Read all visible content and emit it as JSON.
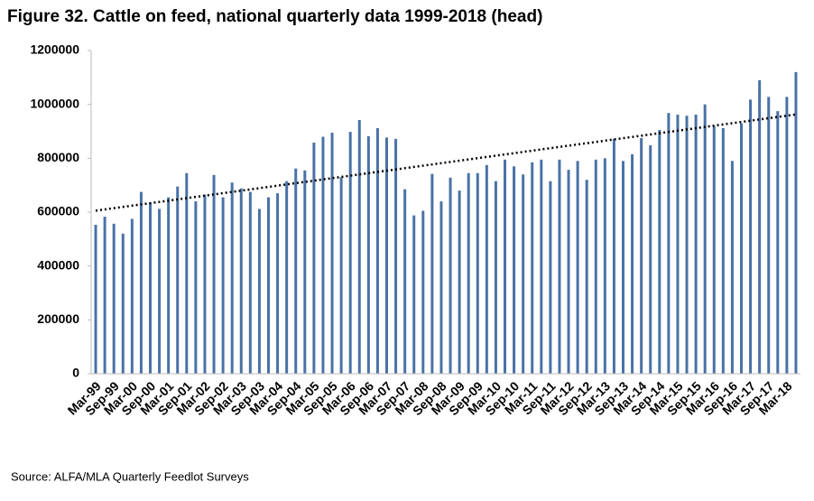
{
  "chart_data": {
    "type": "bar",
    "title": "Figure 32. Cattle on feed, national quarterly data 1999-2018 (head)",
    "source": "Source: ALFA/MLA Quarterly Feedlot Surveys",
    "categories": [
      "Mar-99",
      null,
      "Sep-99",
      null,
      "Mar-00",
      null,
      "Sep-00",
      null,
      "Mar-01",
      null,
      "Sep-01",
      null,
      "Mar-02",
      null,
      "Sep-02",
      null,
      "Mar-03",
      null,
      "Sep-03",
      null,
      "Mar-04",
      null,
      "Sep-04",
      null,
      "Mar-05",
      null,
      "Sep-05",
      null,
      "Mar-06",
      null,
      "Sep-06",
      null,
      "Mar-07",
      null,
      "Sep-07",
      null,
      "Mar-08",
      null,
      "Sep-08",
      null,
      "Mar-09",
      null,
      "Sep-09",
      null,
      "Mar-10",
      null,
      "Sep-10",
      null,
      "Mar-11",
      null,
      "Sep-11",
      null,
      "Mar-12",
      null,
      "Sep-12",
      null,
      "Mar-13",
      null,
      "Sep-13",
      null,
      "Mar-14",
      null,
      "Sep-14",
      null,
      "Mar-15",
      null,
      "Sep-15",
      null,
      "Mar-16",
      null,
      "Sep-16",
      null,
      "Mar-17",
      null,
      "Sep-17",
      null,
      "Mar-18",
      null
    ],
    "values": [
      553000,
      583000,
      557000,
      520000,
      575000,
      675000,
      635000,
      612000,
      655000,
      695000,
      745000,
      640000,
      665000,
      738000,
      655000,
      710000,
      688000,
      675000,
      612000,
      655000,
      670000,
      715000,
      762000,
      755000,
      858000,
      880000,
      895000,
      730000,
      898000,
      942000,
      882000,
      912000,
      877000,
      872000,
      685000,
      588000,
      605000,
      742000,
      640000,
      728000,
      680000,
      745000,
      745000,
      775000,
      715000,
      795000,
      770000,
      740000,
      785000,
      795000,
      715000,
      795000,
      757000,
      790000,
      720000,
      795000,
      800000,
      872000,
      790000,
      815000,
      875000,
      848000,
      905000,
      968000,
      962000,
      958000,
      962000,
      1000000,
      920000,
      912000,
      790000,
      930000,
      1018000,
      1090000,
      1028000,
      975000,
      1028000,
      1120000
    ],
    "color": "#4a72a6",
    "ylim": [
      0,
      1200000
    ],
    "yticks": [
      0,
      200000,
      400000,
      600000,
      800000,
      1000000,
      1200000
    ],
    "grid": false,
    "trendline": "linear"
  }
}
